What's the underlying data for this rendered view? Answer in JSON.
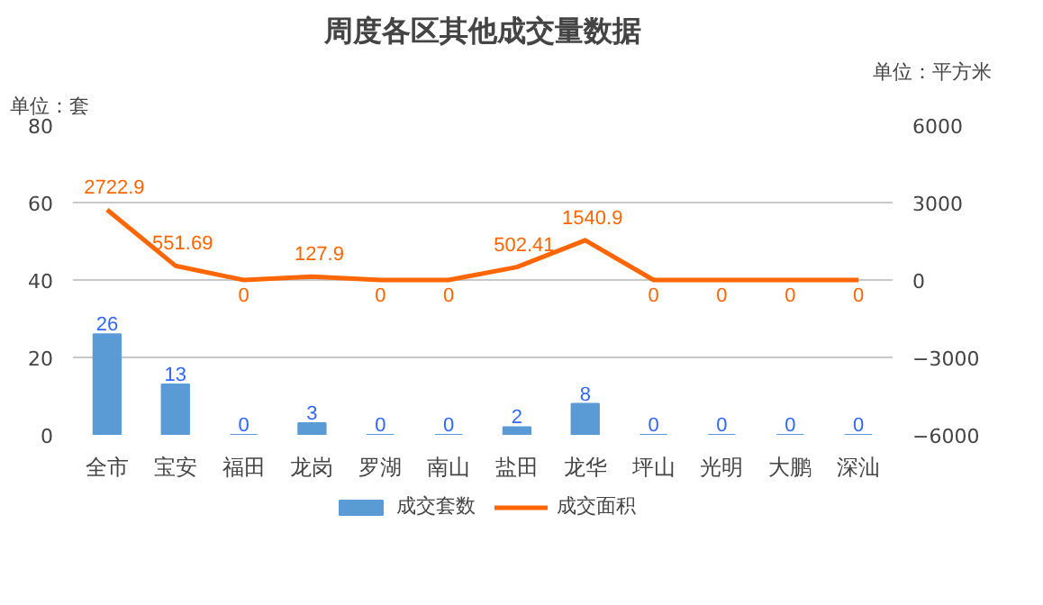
{
  "chart_data": {
    "type": "bar",
    "title": "周度各区其他成交量数据",
    "annotations": [
      "单位：套",
      "单位：平方米"
    ],
    "categories": [
      "全市",
      "宝安",
      "福田",
      "龙岗",
      "罗湖",
      "南山",
      "盐田",
      "龙华",
      "坪山",
      "光明",
      "大鹏",
      "深汕"
    ],
    "series": [
      {
        "name": "成交套数",
        "color": "#5b9bd5",
        "values": [
          26,
          13,
          0,
          3,
          0,
          0,
          2,
          8,
          0,
          0,
          0,
          0
        ]
      },
      {
        "name": "成交面积",
        "type": "line",
        "axis": "y2",
        "color": "#ff6600",
        "values": [
          2722.9,
          551.69,
          0,
          127.9,
          0,
          0,
          502.41,
          1540.9,
          0,
          0,
          0,
          0
        ]
      }
    ],
    "ylim": [
      0,
      80
    ],
    "yticks": [
      0,
      20,
      40,
      60,
      80
    ],
    "y2lim": [
      -6000,
      6000
    ],
    "y2ticks": [
      -6000,
      -3000,
      0,
      3000,
      6000
    ],
    "grid": "y",
    "legend": "bottom",
    "data_labels": true,
    "marker": "none"
  }
}
